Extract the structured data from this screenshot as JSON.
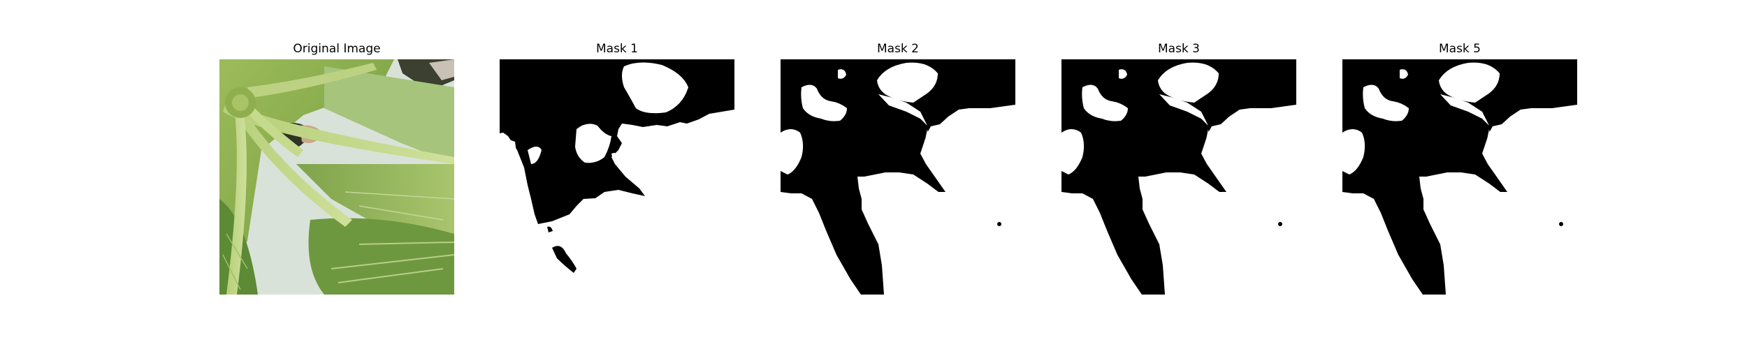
{
  "figure": {
    "panels": [
      {
        "title": "Original Image",
        "kind": "photo",
        "subject": "green leafy plant close-up"
      },
      {
        "title": "Mask 1",
        "kind": "mask",
        "mask_id": "m1"
      },
      {
        "title": "Mask 2",
        "kind": "mask",
        "mask_id": "m2"
      },
      {
        "title": "Mask 3",
        "kind": "mask",
        "mask_id": "m3"
      },
      {
        "title": "Mask 5",
        "kind": "mask",
        "mask_id": "m4"
      }
    ],
    "colors": {
      "mask_foreground": "#ffffff",
      "mask_background": "#000000",
      "page_background": "#ffffff"
    }
  }
}
